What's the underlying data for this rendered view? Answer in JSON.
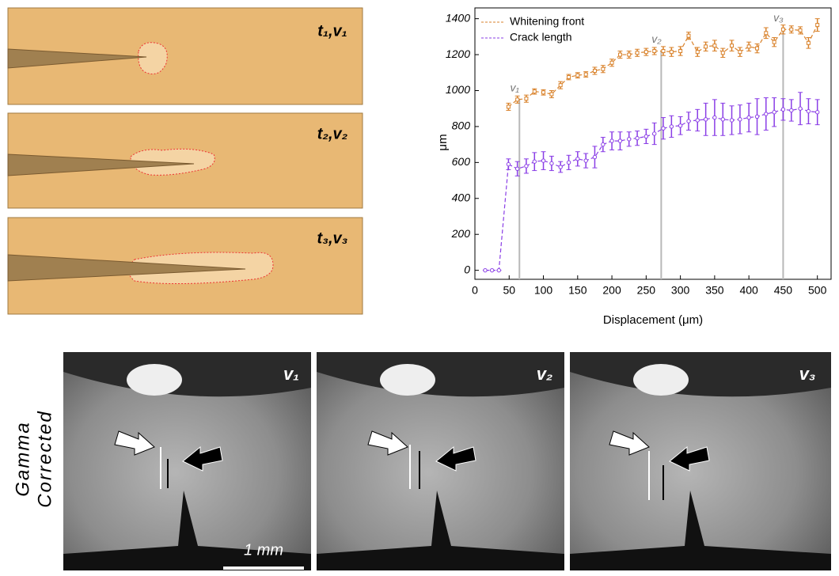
{
  "chart_data": {
    "type": "line",
    "x_label": "Displacement (μm)",
    "y_label": "μm",
    "x": [
      15,
      25,
      35,
      49,
      62,
      75,
      87,
      100,
      112,
      125,
      137,
      150,
      162,
      175,
      187,
      200,
      212,
      225,
      237,
      250,
      262,
      275,
      287,
      300,
      312,
      325,
      337,
      350,
      362,
      375,
      387,
      400,
      412,
      425,
      437,
      450,
      462,
      475,
      487,
      500
    ],
    "series": [
      {
        "name": "Whitening front",
        "color": "#d9822b",
        "marker": "square",
        "values": [
          null,
          null,
          null,
          910,
          950,
          955,
          995,
          990,
          980,
          1030,
          1075,
          1085,
          1090,
          1110,
          1120,
          1155,
          1200,
          1200,
          1210,
          1215,
          1220,
          1220,
          1215,
          1220,
          1305,
          1215,
          1245,
          1250,
          1210,
          1250,
          1215,
          1245,
          1235,
          1320,
          1270,
          1340,
          1340,
          1335,
          1265,
          1365
        ],
        "errors": [
          null,
          null,
          null,
          20,
          20,
          20,
          15,
          15,
          20,
          20,
          15,
          15,
          15,
          20,
          20,
          20,
          20,
          20,
          20,
          20,
          20,
          25,
          25,
          25,
          20,
          25,
          25,
          30,
          25,
          30,
          25,
          25,
          25,
          30,
          25,
          25,
          20,
          20,
          30,
          35
        ]
      },
      {
        "name": "Crack length",
        "color": "#8a3ee6",
        "marker": "circle",
        "values": [
          0,
          0,
          0,
          590,
          565,
          580,
          605,
          610,
          595,
          575,
          600,
          620,
          610,
          630,
          700,
          720,
          720,
          730,
          735,
          745,
          760,
          790,
          800,
          805,
          830,
          835,
          840,
          850,
          840,
          835,
          840,
          850,
          855,
          870,
          880,
          895,
          890,
          900,
          885,
          880
        ],
        "errors": [
          0,
          0,
          0,
          30,
          40,
          40,
          50,
          50,
          40,
          30,
          40,
          40,
          40,
          60,
          40,
          50,
          50,
          40,
          40,
          40,
          60,
          60,
          60,
          50,
          50,
          60,
          90,
          100,
          90,
          80,
          80,
          80,
          100,
          90,
          80,
          60,
          60,
          90,
          70,
          70
        ]
      }
    ],
    "ref_lines": [
      {
        "x": 65,
        "label": "v₁"
      },
      {
        "x": 272,
        "label": "v₂"
      },
      {
        "x": 450,
        "label": "v₃"
      }
    ],
    "ref_color": "#b8b8b8",
    "xlim": [
      0,
      520
    ],
    "xticks": [
      0,
      50,
      100,
      150,
      200,
      250,
      300,
      350,
      400,
      450,
      500
    ],
    "ylim": [
      -50,
      1460
    ],
    "yticks": [
      0,
      200,
      400,
      600,
      800,
      1000,
      1200,
      1400
    ],
    "legend": "upper-left"
  },
  "schematic": {
    "labels": [
      "t₁,v₁",
      "t₂,v₂",
      "t₃,v₃"
    ]
  },
  "photos": {
    "side_label": [
      "Gamma",
      "Corrected"
    ],
    "labels": [
      "v₁",
      "v₂",
      "v₃"
    ],
    "scale_bar": "1 mm"
  }
}
